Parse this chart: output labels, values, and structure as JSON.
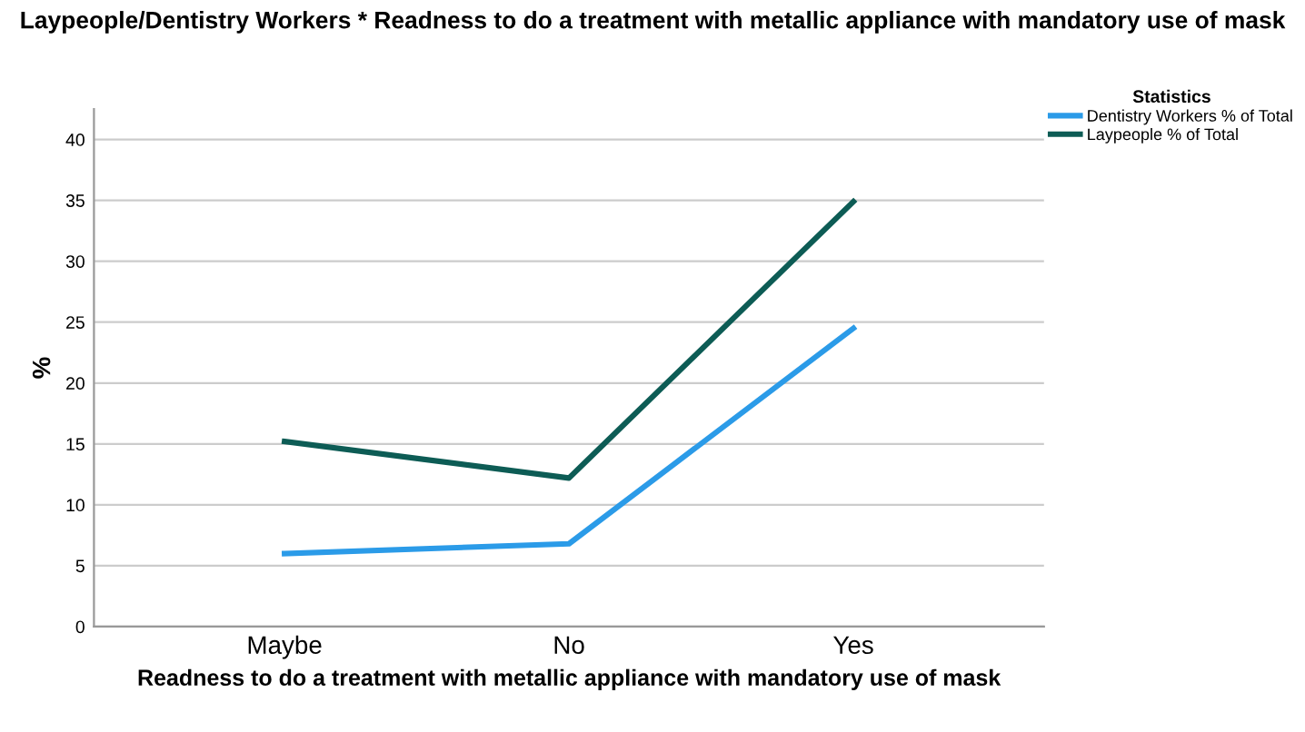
{
  "chart_data": {
    "type": "line",
    "title": "Laypeople/Dentistry Workers * Readness to do a treatment with metallic appliance with mandatory use of mask",
    "xlabel": "Readness to do a treatment with metallic appliance with mandatory use of mask",
    "ylabel": "%",
    "categories": [
      "Maybe",
      "No",
      "Yes"
    ],
    "series": [
      {
        "name": "Dentistry Workers % of Total",
        "color": "#2b9be8",
        "values": [
          6.0,
          6.8,
          24.5
        ]
      },
      {
        "name": "Laypeople % of Total",
        "color": "#0d5c55",
        "values": [
          15.2,
          12.2,
          34.9
        ]
      }
    ],
    "legend_title": "Statistics",
    "legend": "top right",
    "ylim": [
      0,
      42.5
    ],
    "yticks": [
      0,
      5,
      10,
      15,
      20,
      25,
      30,
      35,
      40
    ],
    "grid": "y",
    "marker": "none",
    "line_style": "solid"
  }
}
